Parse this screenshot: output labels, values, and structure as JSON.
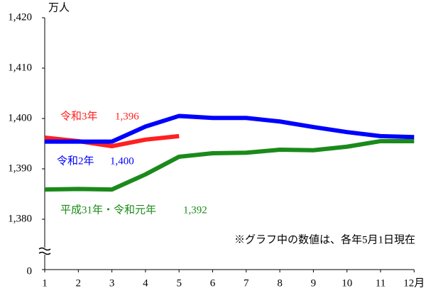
{
  "chart_data": {
    "type": "line",
    "y_unit": "万人",
    "note": "※グラフ中の数値は、各年5月1日現在",
    "categories": [
      "1",
      "2",
      "3",
      "4",
      "5",
      "6",
      "7",
      "8",
      "9",
      "10",
      "11",
      "12月"
    ],
    "ylim": [
      1370,
      1420
    ],
    "yticks": [
      {
        "value": 1370,
        "label": "0"
      },
      1380,
      1390,
      1400,
      1410,
      {
        "value": 1420,
        "label": "1,420"
      }
    ],
    "ytick_labels": [
      "0",
      "1,380",
      "1,390",
      "1,400",
      "1,410",
      "1,420"
    ],
    "axis_break": true,
    "series": [
      {
        "name": "令和3年",
        "label": "1,396",
        "color": "#ff2020",
        "values": [
          1396.2,
          1395.5,
          1394.5,
          1395.8,
          1396.5,
          null,
          null,
          null,
          null,
          null,
          null,
          null
        ]
      },
      {
        "name": "令和2年",
        "label": "1,400",
        "color": "#0000ff",
        "values": [
          1395.4,
          1395.4,
          1395.4,
          1398.4,
          1400.5,
          1400.1,
          1400.1,
          1399.4,
          1398.3,
          1397.3,
          1396.5,
          1396.3
        ]
      },
      {
        "name": "平成31年・令和元年",
        "label": "1,392",
        "color": "#1a8a1a",
        "values": [
          1385.9,
          1386.0,
          1385.9,
          1388.9,
          1392.4,
          1393.1,
          1393.2,
          1393.8,
          1393.7,
          1394.4,
          1395.5,
          1395.5
        ]
      }
    ]
  }
}
